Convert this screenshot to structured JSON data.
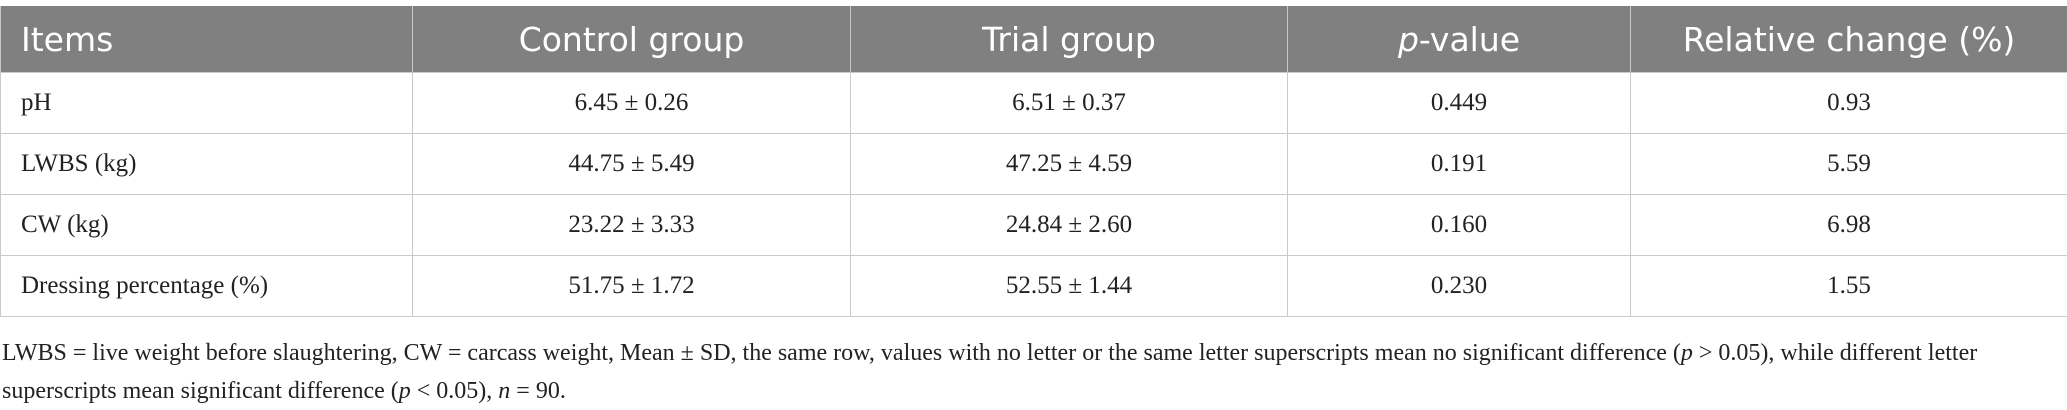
{
  "table": {
    "columns": [
      "Items",
      "Control group",
      "Trial group",
      [
        "p",
        "-value"
      ],
      "Relative change (%)"
    ],
    "rows": [
      [
        "pH",
        "6.45 ± 0.26",
        "6.51 ± 0.37",
        "0.449",
        "0.93"
      ],
      [
        "LWBS (kg)",
        "44.75 ± 5.49",
        "47.25 ± 4.59",
        "0.191",
        "5.59"
      ],
      [
        "CW (kg)",
        "23.22 ± 3.33",
        "24.84 ± 2.60",
        "0.160",
        "6.98"
      ],
      [
        "Dressing percentage (%)",
        "51.75 ± 1.72",
        "52.55 ± 1.44",
        "0.230",
        "1.55"
      ]
    ]
  },
  "footnote": [
    "LWBS = live weight before slaughtering, CW = carcass weight, Mean ± SD, the same row, values with no letter or the same letter superscripts mean no significant difference (",
    "p",
    " > 0.05), while different letter superscripts mean significant difference (",
    "p",
    " < 0.05), ",
    "n",
    " = 90."
  ]
}
